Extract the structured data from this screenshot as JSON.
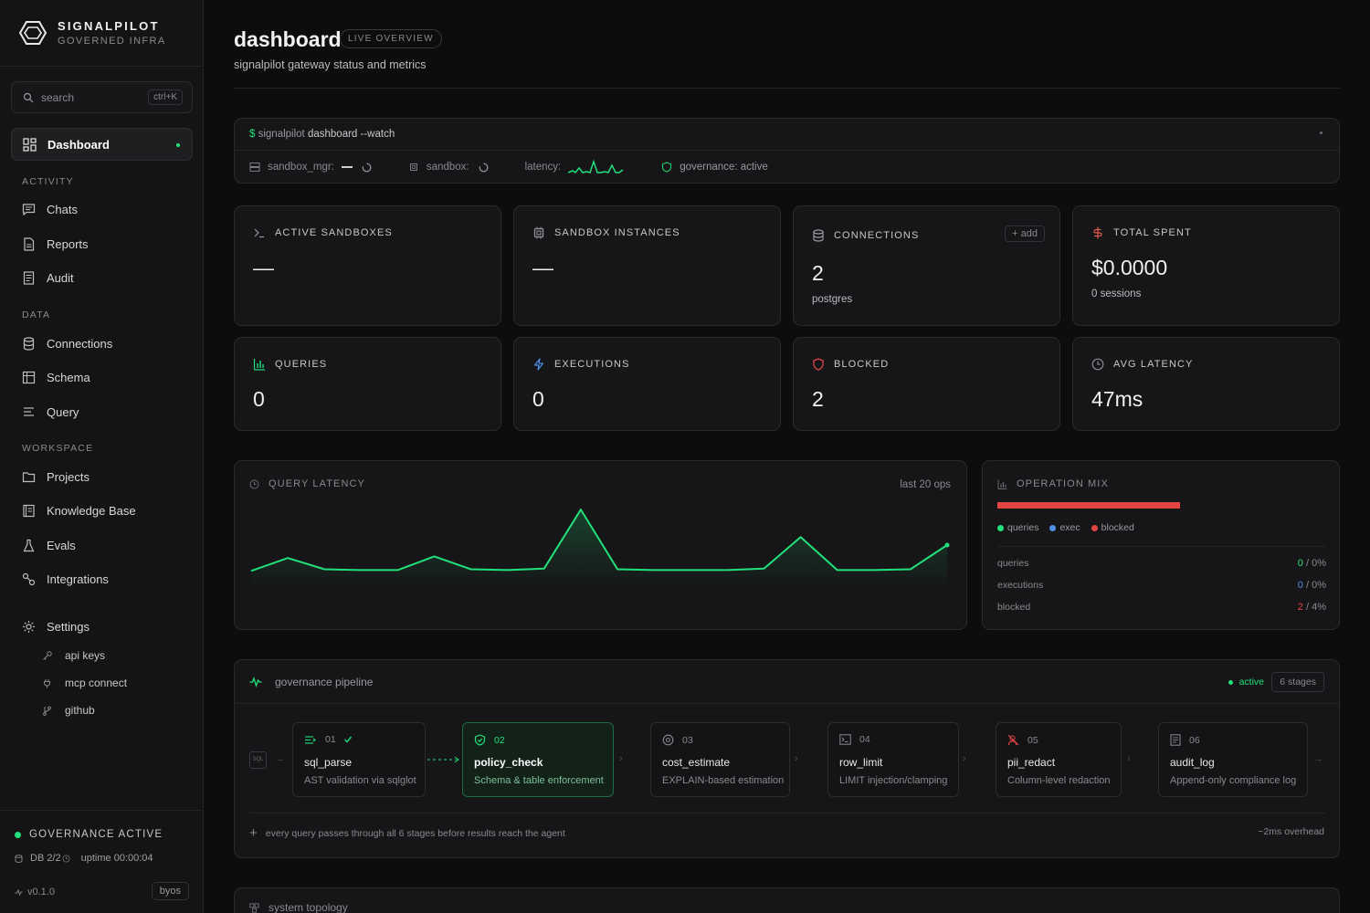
{
  "brand": {
    "name": "SIGNALPILOT",
    "tagline": "GOVERNED INFRA"
  },
  "search": {
    "placeholder": "search",
    "shortcut": "ctrl+K"
  },
  "sidebar": {
    "active_item": "Dashboard",
    "dashboard": "Dashboard",
    "sections": {
      "activity": "ACTIVITY",
      "data": "DATA",
      "workspace": "WORKSPACE"
    },
    "activity": [
      {
        "label": "Chats",
        "icon": "chat-icon"
      },
      {
        "label": "Reports",
        "icon": "document-icon"
      },
      {
        "label": "Audit",
        "icon": "audit-icon"
      }
    ],
    "data": [
      {
        "label": "Connections",
        "icon": "database-icon"
      },
      {
        "label": "Schema",
        "icon": "table-icon"
      },
      {
        "label": "Query",
        "icon": "query-icon"
      }
    ],
    "workspace": [
      {
        "label": "Projects",
        "icon": "folder-icon"
      },
      {
        "label": "Knowledge Base",
        "icon": "book-icon"
      },
      {
        "label": "Evals",
        "icon": "flask-icon"
      },
      {
        "label": "Integrations",
        "icon": "link-icon"
      }
    ],
    "settings": {
      "label": "Settings",
      "items": [
        {
          "label": "api keys",
          "icon": "key-icon"
        },
        {
          "label": "mcp connect",
          "icon": "plug-icon"
        },
        {
          "label": "github",
          "icon": "branch-icon"
        }
      ]
    },
    "footer": {
      "governance": "GOVERNANCE ACTIVE",
      "db": "DB 2/2",
      "uptime": "uptime 00:00:04",
      "version": "v0.1.0",
      "mode": "byos"
    }
  },
  "header": {
    "title": "dashboard",
    "badge": "LIVE OVERVIEW",
    "subtitle": "signalpilot gateway status and metrics"
  },
  "terminal": {
    "prompt": "$",
    "command_app": "signalpilot",
    "command_rest": "dashboard --watch",
    "sandbox_mgr": "sandbox_mgr:",
    "sandbox": "sandbox:",
    "latency": "latency:",
    "governance": "governance: active"
  },
  "stats": {
    "active_sandboxes": {
      "label": "ACTIVE SANDBOXES",
      "value": "—"
    },
    "sandbox_instances": {
      "label": "SANDBOX INSTANCES",
      "value": "—"
    },
    "connections": {
      "label": "CONNECTIONS",
      "value": "2",
      "sub": "postgres",
      "action": "+ add"
    },
    "total_spent": {
      "label": "TOTAL SPENT",
      "value": "$0.0000",
      "sub": "0 sessions"
    },
    "queries": {
      "label": "QUERIES",
      "value": "0"
    },
    "executions": {
      "label": "EXECUTIONS",
      "value": "0"
    },
    "blocked": {
      "label": "BLOCKED",
      "value": "2"
    },
    "avg_latency": {
      "label": "AVG LATENCY",
      "value": "47ms"
    }
  },
  "latency_chart": {
    "title": "QUERY LATENCY",
    "range": "last 20 ops",
    "color": "#22e07a"
  },
  "chart_data": {
    "type": "area",
    "x": [
      1,
      2,
      3,
      4,
      5,
      6,
      7,
      8,
      9,
      10,
      11,
      12,
      13,
      14,
      15,
      16,
      17,
      18,
      19,
      20
    ],
    "values": [
      40,
      48,
      41,
      40.5,
      40.5,
      49,
      41,
      40.5,
      41.5,
      78,
      41,
      40.5,
      40.5,
      40.5,
      41.5,
      61,
      40.5,
      40.5,
      41,
      56
    ],
    "ylim": [
      30,
      82
    ],
    "title": "QUERY LATENCY",
    "xlabel": "",
    "ylabel": "",
    "grid": false
  },
  "operation_mix": {
    "title": "OPERATION MIX",
    "legend": [
      {
        "label": "queries",
        "color": "#22e07a"
      },
      {
        "label": "exec",
        "color": "#4f8fe6"
      },
      {
        "label": "blocked",
        "color": "#e24444"
      }
    ],
    "rows": [
      {
        "label": "queries",
        "value": "0",
        "pct": "0%",
        "color": "#22e07a"
      },
      {
        "label": "executions",
        "value": "0",
        "pct": "0%",
        "color": "#4f8fe6"
      },
      {
        "label": "blocked",
        "value": "2",
        "pct": "4%",
        "color": "#e24444"
      }
    ]
  },
  "pipeline": {
    "title": "governance pipeline",
    "status": "active",
    "stages_count": "6 stages",
    "input_label": "SQL",
    "stages": [
      {
        "num": "01",
        "name": "sql_parse",
        "desc": "AST validation via sqlglot",
        "icon": "parse-icon"
      },
      {
        "num": "02",
        "name": "policy_check",
        "desc": "Schema & table enforcement",
        "icon": "shield-check-icon"
      },
      {
        "num": "03",
        "name": "cost_estimate",
        "desc": "EXPLAIN-based estimation",
        "icon": "coin-icon"
      },
      {
        "num": "04",
        "name": "row_limit",
        "desc": "LIMIT injection/clamping",
        "icon": "terminal-icon"
      },
      {
        "num": "05",
        "name": "pii_redact",
        "desc": "Column-level redaction",
        "icon": "redact-icon"
      },
      {
        "num": "06",
        "name": "audit_log",
        "desc": "Append-only compliance log",
        "icon": "log-icon"
      }
    ],
    "footer": "every query passes through all 6 stages before results reach the agent",
    "overhead": "~2ms overhead"
  },
  "topology": {
    "title": "system topology"
  },
  "colors": {
    "accent": "#22e07a",
    "danger": "#e24444",
    "info": "#4f8fe6",
    "background": "#0d0d0e",
    "card": "#161618"
  }
}
